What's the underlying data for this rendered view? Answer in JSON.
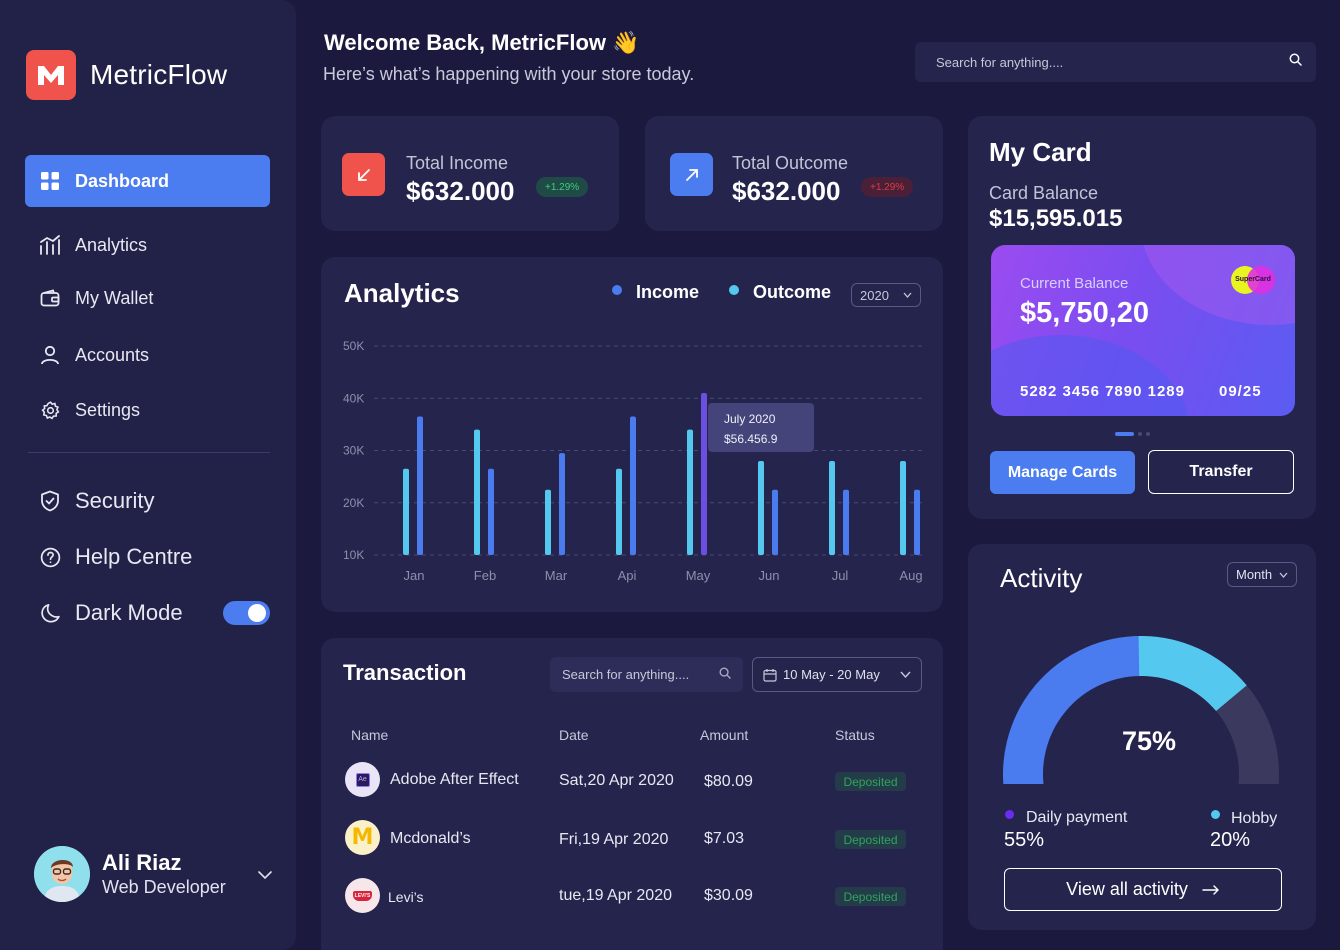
{
  "app": {
    "name": "MetricFlow"
  },
  "nav": {
    "items": [
      {
        "label": "Dashboard",
        "icon": "grid-icon"
      },
      {
        "label": "Analytics",
        "icon": "analytics-icon"
      },
      {
        "label": "My Wallet",
        "icon": "wallet-icon"
      },
      {
        "label": "Accounts",
        "icon": "user-icon"
      },
      {
        "label": "Settings",
        "icon": "gear-icon"
      }
    ],
    "secondary": [
      {
        "label": "Security",
        "icon": "shield-icon"
      },
      {
        "label": "Help Centre",
        "icon": "help-icon"
      },
      {
        "label": "Dark Mode",
        "icon": "moon-icon"
      }
    ],
    "dark_mode_on": true
  },
  "profile": {
    "name": "Ali Riaz",
    "role": "Web Developer"
  },
  "header": {
    "title": "Welcome Back, MetricFlow 👋",
    "subtitle": "Here’s what’s happening with your store today.",
    "search_placeholder": "Search for anything...."
  },
  "stats": {
    "income": {
      "label": "Total Income",
      "value": "$632.000",
      "change": "+1.29%"
    },
    "outcome": {
      "label": "Total Outcome",
      "value": "$632.000",
      "change": "+1.29%"
    }
  },
  "analytics": {
    "title": "Analytics",
    "legend_income": "Income",
    "legend_outcome": "Outcome",
    "year": "2020",
    "tooltip_title": "July 2020",
    "tooltip_value": "$56.456.9"
  },
  "chart_data": {
    "type": "bar",
    "categories": [
      "Jan",
      "Feb",
      "Mar",
      "Api",
      "May",
      "Jun",
      "Jul",
      "Aug"
    ],
    "series": [
      {
        "name": "Outcome",
        "values": [
          26.5,
          34,
          22.5,
          26.5,
          34,
          28,
          28,
          28
        ]
      },
      {
        "name": "Income",
        "values": [
          36.5,
          26.5,
          29.5,
          36.5,
          41,
          22.5,
          22.5,
          22.5
        ]
      }
    ],
    "yticks": [
      "50K",
      "40K",
      "30K",
      "20K",
      "10K"
    ],
    "ylim": [
      10,
      50
    ],
    "grid": true,
    "colors": {
      "Outcome": "#55c8f0",
      "Income": "#4a7cf0",
      "highlight": "#6a4fe0"
    },
    "highlight_index": 4
  },
  "transactions": {
    "title": "Transaction",
    "search_placeholder": "Search for anything....",
    "date_range": "10 May - 20 May",
    "columns": [
      "Name",
      "Date",
      "Amount",
      "Status"
    ],
    "rows": [
      {
        "name": "Adobe After Effect",
        "date": "Sat,20 Apr 2020",
        "amount": "$80.09",
        "status": "Deposited",
        "logo_text": "Ae"
      },
      {
        "name": "Mcdonald’s",
        "date": "Fri,19 Apr 2020",
        "amount": "$7.03",
        "status": "Deposited",
        "logo_text": "M"
      },
      {
        "name": "Levi’s",
        "date": "tue,19 Apr 2020",
        "amount": "$30.09",
        "status": "Deposited",
        "logo_text": "LEVI'S"
      }
    ]
  },
  "my_card": {
    "title": "My Card",
    "balance_label": "Card Balance",
    "balance": "$15,595.015",
    "card": {
      "label": "Current Balance",
      "value": "$5,750,20",
      "number": "5282 3456 7890 1289",
      "expiry": "09/25",
      "brand": "SuperCard"
    },
    "manage_label": "Manage Cards",
    "transfer_label": "Transfer"
  },
  "activity": {
    "title": "Activity",
    "period": "Month",
    "percent_label": "75%",
    "percent": 75,
    "daily_label": "Daily payment",
    "daily_value": "55%",
    "hobby_label": "Hobby",
    "hobby_value": "20%",
    "view_all": "View all activity",
    "colors": {
      "daily": "#4a7cf0",
      "hobby": "#55c8f0",
      "rest": "#3b3a5e"
    }
  }
}
